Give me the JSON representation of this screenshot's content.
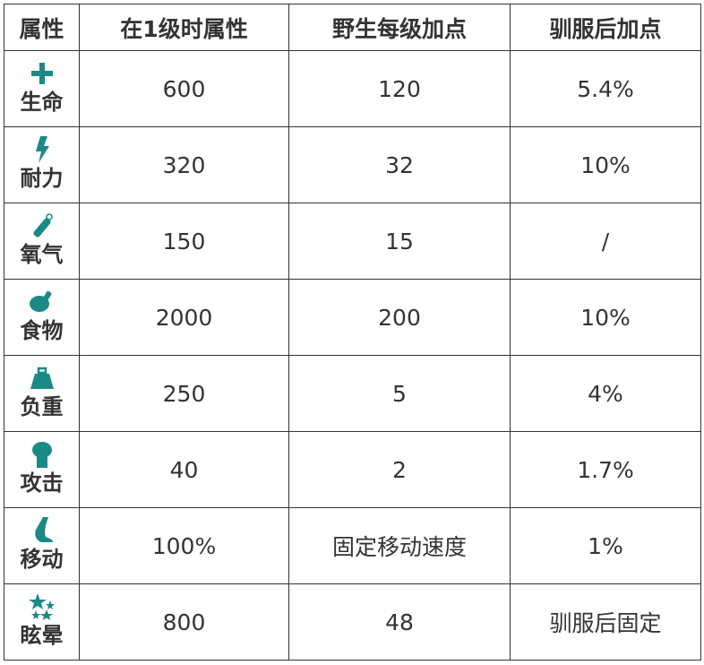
{
  "accent_color": "#1b8a86",
  "headers": [
    "属性",
    "在1级时属性",
    "野生每级加点",
    "驯服后加点"
  ],
  "rows": [
    {
      "icon": "health-cross-icon",
      "name": "生命",
      "base": "600",
      "wild": "120",
      "tamed": "5.4%"
    },
    {
      "icon": "lightning-icon",
      "name": "耐力",
      "base": "320",
      "wild": "32",
      "tamed": "10%"
    },
    {
      "icon": "oxygen-tank-icon",
      "name": "氧气",
      "base": "150",
      "wild": "15",
      "tamed": "/"
    },
    {
      "icon": "meat-icon",
      "name": "食物",
      "base": "2000",
      "wild": "200",
      "tamed": "10%"
    },
    {
      "icon": "weight-icon",
      "name": "负重",
      "base": "250",
      "wild": "5",
      "tamed": "4%"
    },
    {
      "icon": "fist-icon",
      "name": "攻击",
      "base": "40",
      "wild": "2",
      "tamed": "1.7%"
    },
    {
      "icon": "foot-icon",
      "name": "移动",
      "base": "100%",
      "wild": "固定移动速度",
      "tamed": "1%"
    },
    {
      "icon": "stars-icon",
      "name": "眩晕",
      "base": "800",
      "wild": "48",
      "tamed": "驯服后固定"
    }
  ]
}
